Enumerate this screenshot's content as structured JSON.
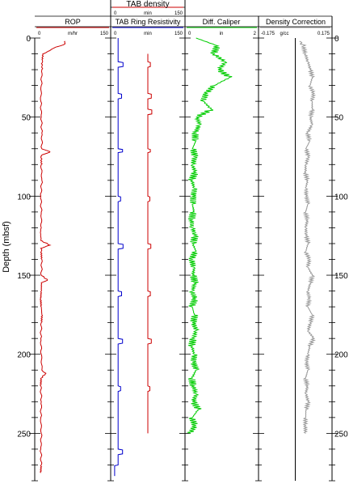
{
  "chart_data": {
    "type": "line",
    "depth_axis": {
      "label": "Depth (mbsf)",
      "range": [
        0,
        280
      ],
      "ticks": [
        0,
        50,
        100,
        150,
        200,
        250
      ],
      "tick_labels": [
        "0",
        "50",
        "100",
        "150",
        "200",
        "250"
      ]
    },
    "tracks": [
      {
        "name": "ROP",
        "unit": "m/hr",
        "min_label": "0",
        "max_label": "150",
        "range": [
          0,
          150
        ],
        "color": "#cc0000",
        "depth": [
          2,
          4,
          6,
          8,
          10,
          14,
          20,
          30,
          40,
          50,
          60,
          70,
          72,
          74,
          76,
          80,
          90,
          100,
          110,
          120,
          128,
          131,
          133,
          135,
          140,
          150,
          153,
          155,
          160,
          165,
          170,
          175,
          180,
          190,
          200,
          210,
          212,
          215,
          220,
          230,
          240,
          250,
          260,
          270,
          275
        ],
        "values": [
          60,
          58,
          40,
          30,
          16,
          15,
          14,
          13,
          12,
          13,
          14,
          14,
          30,
          14,
          13,
          13,
          14,
          12,
          13,
          13,
          12,
          30,
          12,
          13,
          14,
          13,
          25,
          13,
          13,
          12,
          13,
          14,
          13,
          12,
          13,
          14,
          22,
          13,
          12,
          13,
          12,
          13,
          12,
          13,
          12
        ]
      },
      {
        "name": "TAB Ring Resistivity",
        "unit": "",
        "min_label": "",
        "max_label": "",
        "range": [
          0,
          150
        ],
        "color": "#0000cc",
        "depth": [
          0,
          15,
          15.5,
          18,
          18.5,
          35,
          35.5,
          38,
          38.5,
          70,
          70.5,
          72,
          72.5,
          100,
          100.5,
          103,
          103.5,
          130,
          130.5,
          133,
          133.5,
          160,
          160.5,
          163,
          163.5,
          190,
          190.5,
          193,
          193.5,
          220,
          220.5,
          223,
          223.5,
          260,
          260.5,
          263,
          263.5,
          270,
          270.5,
          277
        ],
        "values": [
          15,
          15,
          25,
          25,
          15,
          15,
          22,
          22,
          15,
          15,
          24,
          24,
          15,
          15,
          20,
          20,
          15,
          15,
          25,
          25,
          15,
          15,
          22,
          22,
          15,
          15,
          24,
          24,
          15,
          15,
          20,
          20,
          15,
          15,
          24,
          24,
          15,
          15,
          8,
          8
        ]
      },
      {
        "name": "TAB density",
        "unit": "",
        "min_label": "0",
        "max_label": "150",
        "range": [
          0,
          150
        ],
        "color": "#cc0000",
        "depth": [
          10,
          15,
          15.5,
          18,
          18.5,
          35,
          35.5,
          38,
          38.5,
          45,
          45.5,
          48,
          48.5,
          70,
          70.5,
          72,
          72.5,
          100,
          100.5,
          103,
          103.5,
          130,
          130.5,
          133,
          133.5,
          160,
          160.5,
          163,
          163.5,
          190,
          190.5,
          193,
          193.5,
          220,
          220.5,
          223,
          223.5,
          250
        ],
        "values": [
          75,
          75,
          80,
          80,
          75,
          75,
          82,
          82,
          75,
          75,
          83,
          83,
          75,
          75,
          80,
          80,
          75,
          75,
          79,
          79,
          75,
          75,
          81,
          81,
          75,
          75,
          80,
          80,
          75,
          75,
          82,
          82,
          75,
          75,
          79,
          79,
          75,
          75
        ]
      },
      {
        "name": "Diff. Caliper",
        "unit": "in",
        "min_label": "0",
        "max_label": "2",
        "range": [
          0,
          2
        ],
        "color": "#00cc00",
        "depth": [
          0,
          5,
          10,
          15,
          20,
          25,
          30,
          35,
          40,
          45,
          50,
          55,
          60,
          65,
          70,
          75,
          80,
          85,
          90,
          95,
          100,
          105,
          110,
          115,
          120,
          125,
          130,
          135,
          140,
          145,
          150,
          155,
          160,
          165,
          170,
          175,
          180,
          185,
          190,
          195,
          200,
          205,
          210,
          215,
          220,
          225,
          230,
          235,
          240,
          245,
          250
        ],
        "values": [
          0.3,
          0.9,
          0.8,
          1.1,
          0.9,
          1.2,
          0.8,
          0.6,
          0.5,
          0.7,
          0.3,
          0.4,
          0.3,
          0.3,
          0.2,
          0.25,
          0.2,
          0.3,
          0.2,
          0.25,
          0.2,
          0.2,
          0.25,
          0.2,
          0.2,
          0.25,
          0.2,
          0.3,
          0.2,
          0.25,
          0.2,
          0.25,
          0.2,
          0.3,
          0.2,
          0.25,
          0.2,
          0.3,
          0.25,
          0.2,
          0.25,
          0.2,
          0.3,
          0.2,
          0.25,
          0.3,
          0.2,
          0.35,
          0.2,
          0.3,
          0.15
        ]
      },
      {
        "name": "Density Correction",
        "unit": "g/cc",
        "min_label": "-0.175",
        "max_label": "0.175",
        "range": [
          -0.175,
          0.175
        ],
        "color": "#999999",
        "depth": [
          2,
          5,
          10,
          15,
          20,
          25,
          30,
          35,
          40,
          45,
          50,
          55,
          60,
          65,
          70,
          75,
          80,
          85,
          90,
          95,
          100,
          105,
          110,
          115,
          120,
          125,
          130,
          135,
          140,
          145,
          150,
          155,
          160,
          165,
          170,
          175,
          180,
          185,
          190,
          195,
          200,
          205,
          210,
          215,
          220,
          225,
          230,
          235,
          240,
          245,
          250
        ],
        "values": [
          0.02,
          0.04,
          0.05,
          0.06,
          0.07,
          0.08,
          0.07,
          0.09,
          0.08,
          0.08,
          0.07,
          0.08,
          0.06,
          0.07,
          0.05,
          0.06,
          0.05,
          0.05,
          0.06,
          0.05,
          0.05,
          0.06,
          0.05,
          0.06,
          0.05,
          0.05,
          0.06,
          0.05,
          0.07,
          0.06,
          0.08,
          0.07,
          0.06,
          0.07,
          0.06,
          0.08,
          0.07,
          0.06,
          0.09,
          0.07,
          0.06,
          0.05,
          0.06,
          0.05,
          0.06,
          0.05,
          0.06,
          0.05,
          0.05,
          0.05,
          0.05
        ]
      }
    ]
  }
}
